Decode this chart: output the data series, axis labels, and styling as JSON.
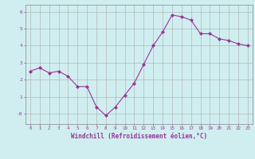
{
  "x": [
    0,
    1,
    2,
    3,
    4,
    5,
    6,
    7,
    8,
    9,
    10,
    11,
    12,
    13,
    14,
    15,
    16,
    17,
    18,
    19,
    20,
    21,
    22,
    23
  ],
  "y": [
    2.5,
    2.7,
    2.4,
    2.5,
    2.2,
    1.6,
    1.6,
    0.4,
    -0.1,
    0.4,
    1.1,
    1.8,
    2.9,
    4.0,
    4.8,
    5.8,
    5.7,
    5.5,
    4.7,
    4.7,
    4.4,
    4.3,
    4.1,
    4.0
  ],
  "line_color": "#993399",
  "marker": "D",
  "marker_size": 2.0,
  "bg_color": "#d0eef0",
  "grid_color": "#aaaaaa",
  "xlabel": "Windchill (Refroidissement éolien,°C)",
  "xlabel_color": "#993399",
  "tick_color": "#993399",
  "label_color": "#993399",
  "ylim": [
    -0.6,
    6.4
  ],
  "xlim": [
    -0.5,
    23.5
  ],
  "yticks": [
    0,
    1,
    2,
    3,
    4,
    5,
    6
  ],
  "ytick_labels": [
    "-0",
    "1",
    "2",
    "3",
    "4",
    "5",
    "6"
  ],
  "xticks": [
    0,
    1,
    2,
    3,
    4,
    5,
    6,
    7,
    8,
    9,
    10,
    11,
    12,
    13,
    14,
    15,
    16,
    17,
    18,
    19,
    20,
    21,
    22,
    23
  ]
}
